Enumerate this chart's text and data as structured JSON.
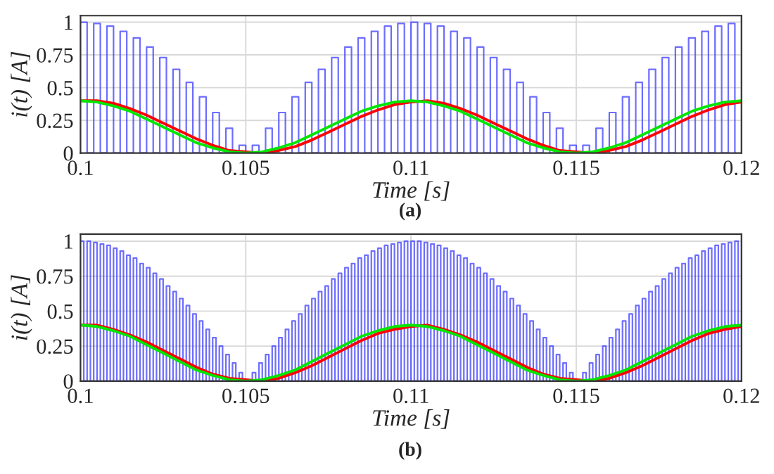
{
  "chart_data": [
    {
      "type": "line",
      "xlabel": "Time [s]",
      "ylabel": "i(t) [A]",
      "xlim": [
        0.1,
        0.12
      ],
      "ylim": [
        0,
        1.05
      ],
      "xticks": [
        0.1,
        0.105,
        0.11,
        0.115,
        0.12
      ],
      "yticks": [
        0,
        0.25,
        0.5,
        0.75,
        1
      ],
      "grid": true,
      "annotations": [
        "(a)"
      ],
      "series": [
        {
          "type": "step",
          "color": "#3c3cff",
          "x": [
            0.1,
            0.1002,
            0.1004,
            0.1006,
            0.1008,
            0.101,
            0.1012,
            0.1014,
            0.1016,
            0.1018,
            0.102,
            0.1022,
            0.1024,
            0.1026,
            0.1028,
            0.103,
            0.1032,
            0.1034,
            0.1036,
            0.1038,
            0.104,
            0.1042,
            0.1044,
            0.1046,
            0.1048,
            0.105,
            0.1052,
            0.1054,
            0.1056,
            0.1058,
            0.106,
            0.1062,
            0.1064,
            0.1066,
            0.1068,
            0.107,
            0.1072,
            0.1074,
            0.1076,
            0.1078,
            0.108,
            0.1082,
            0.1084,
            0.1086,
            0.1088,
            0.109,
            0.1092,
            0.1094,
            0.1096,
            0.1098,
            0.11,
            0.1102,
            0.1104,
            0.1106,
            0.1108,
            0.111,
            0.1112,
            0.1114,
            0.1116,
            0.1118,
            0.112,
            0.1122,
            0.1124,
            0.1126,
            0.1128,
            0.113,
            0.1132,
            0.1134,
            0.1136,
            0.1138,
            0.114,
            0.1142,
            0.1144,
            0.1146,
            0.1148,
            0.115,
            0.1152,
            0.1154,
            0.1156,
            0.1158,
            0.116,
            0.1162,
            0.1164,
            0.1166,
            0.1168,
            0.117,
            0.1172,
            0.1174,
            0.1176,
            0.1178,
            0.118,
            0.1182,
            0.1184,
            0.1186,
            0.1188,
            0.119,
            0.1192,
            0.1194,
            0.1196,
            0.1198
          ],
          "values": [
            1.0,
            0,
            0.99,
            0,
            0.97,
            0,
            0.93,
            0,
            0.88,
            0,
            0.81,
            0,
            0.73,
            0,
            0.64,
            0,
            0.54,
            0,
            0.43,
            0,
            0.31,
            0,
            0.19,
            0,
            0.06,
            0,
            0.06,
            0,
            0.19,
            0,
            0.31,
            0,
            0.43,
            0,
            0.54,
            0,
            0.64,
            0,
            0.73,
            0,
            0.81,
            0,
            0.88,
            0,
            0.93,
            0,
            0.97,
            0,
            0.99,
            0,
            1.0,
            0,
            0.99,
            0,
            0.97,
            0,
            0.93,
            0,
            0.88,
            0,
            0.81,
            0,
            0.73,
            0,
            0.64,
            0,
            0.54,
            0,
            0.43,
            0,
            0.31,
            0,
            0.19,
            0,
            0.06,
            0,
            0.06,
            0,
            0.19,
            0,
            0.31,
            0,
            0.43,
            0,
            0.54,
            0,
            0.64,
            0,
            0.73,
            0,
            0.81,
            0,
            0.88,
            0,
            0.93,
            0,
            0.97,
            0,
            0.99,
            0
          ]
        },
        {
          "color": "#ff0000",
          "x": [
            0.1,
            0.1005,
            0.101,
            0.1015,
            0.102,
            0.1025,
            0.103,
            0.1035,
            0.104,
            0.1045,
            0.105,
            0.1055,
            0.106,
            0.1065,
            0.107,
            0.1075,
            0.108,
            0.1085,
            0.109,
            0.1095,
            0.11,
            0.1105,
            0.111,
            0.1115,
            0.112,
            0.1125,
            0.113,
            0.1135,
            0.114,
            0.1145,
            0.115,
            0.1155,
            0.116,
            0.1165,
            0.117,
            0.1175,
            0.118,
            0.1185,
            0.119,
            0.1195,
            0.12
          ],
          "values": [
            0.4,
            0.4,
            0.38,
            0.34,
            0.29,
            0.23,
            0.17,
            0.11,
            0.06,
            0.02,
            0.01,
            0.0,
            0.02,
            0.05,
            0.1,
            0.16,
            0.22,
            0.28,
            0.33,
            0.37,
            0.39,
            0.4,
            0.38,
            0.34,
            0.29,
            0.23,
            0.17,
            0.11,
            0.06,
            0.02,
            0.01,
            0.0,
            0.02,
            0.05,
            0.1,
            0.16,
            0.22,
            0.28,
            0.33,
            0.37,
            0.39
          ]
        },
        {
          "color": "#00e600",
          "x": [
            0.1,
            0.1005,
            0.101,
            0.1015,
            0.102,
            0.1025,
            0.103,
            0.1035,
            0.104,
            0.1045,
            0.105,
            0.1055,
            0.106,
            0.1065,
            0.107,
            0.1075,
            0.108,
            0.1085,
            0.109,
            0.1095,
            0.11,
            0.1105,
            0.111,
            0.1115,
            0.112,
            0.1125,
            0.113,
            0.1135,
            0.114,
            0.1145,
            0.115,
            0.1155,
            0.116,
            0.1165,
            0.117,
            0.1175,
            0.118,
            0.1185,
            0.119,
            0.1195,
            0.12
          ],
          "values": [
            0.4,
            0.39,
            0.36,
            0.32,
            0.26,
            0.2,
            0.14,
            0.08,
            0.04,
            0.01,
            0.0,
            0.01,
            0.04,
            0.08,
            0.14,
            0.2,
            0.26,
            0.32,
            0.36,
            0.39,
            0.4,
            0.39,
            0.36,
            0.32,
            0.26,
            0.2,
            0.14,
            0.08,
            0.04,
            0.01,
            0.0,
            0.01,
            0.04,
            0.08,
            0.14,
            0.2,
            0.26,
            0.32,
            0.36,
            0.39,
            0.4
          ]
        }
      ]
    },
    {
      "type": "line",
      "xlabel": "Time [s]",
      "ylabel": "i(t) [A]",
      "xlim": [
        0.1,
        0.12
      ],
      "ylim": [
        0,
        1.05
      ],
      "xticks": [
        0.1,
        0.105,
        0.11,
        0.115,
        0.12
      ],
      "yticks": [
        0,
        0.25,
        0.5,
        0.75,
        1
      ],
      "grid": true,
      "annotations": [
        "(b)"
      ],
      "series": [
        {
          "type": "step",
          "color": "#3c3cff",
          "x": [
            0.1,
            0.1001,
            0.1002,
            0.1003,
            0.1004,
            0.1005,
            0.1006,
            0.1007,
            0.1008,
            0.1009,
            0.101,
            0.1011,
            0.1012,
            0.1013,
            0.1014,
            0.1015,
            0.1016,
            0.1017,
            0.1018,
            0.1019,
            0.102,
            0.1021,
            0.1022,
            0.1023,
            0.1024,
            0.1025,
            0.1026,
            0.1027,
            0.1028,
            0.1029,
            0.103,
            0.1031,
            0.1032,
            0.1033,
            0.1034,
            0.1035,
            0.1036,
            0.1037,
            0.1038,
            0.1039,
            0.104,
            0.1041,
            0.1042,
            0.1043,
            0.1044,
            0.1045,
            0.1046,
            0.1047,
            0.1048,
            0.1049,
            0.105,
            0.1051,
            0.1052,
            0.1053,
            0.1054,
            0.1055,
            0.1056,
            0.1057,
            0.1058,
            0.1059,
            0.106,
            0.1061,
            0.1062,
            0.1063,
            0.1064,
            0.1065,
            0.1066,
            0.1067,
            0.1068,
            0.1069,
            0.107,
            0.1071,
            0.1072,
            0.1073,
            0.1074,
            0.1075,
            0.1076,
            0.1077,
            0.1078,
            0.1079,
            0.108,
            0.1081,
            0.1082,
            0.1083,
            0.1084,
            0.1085,
            0.1086,
            0.1087,
            0.1088,
            0.1089,
            0.109,
            0.1091,
            0.1092,
            0.1093,
            0.1094,
            0.1095,
            0.1096,
            0.1097,
            0.1098,
            0.1099,
            0.11,
            0.1101,
            0.1102,
            0.1103,
            0.1104,
            0.1105,
            0.1106,
            0.1107,
            0.1108,
            0.1109,
            0.111,
            0.1111,
            0.1112,
            0.1113,
            0.1114,
            0.1115,
            0.1116,
            0.1117,
            0.1118,
            0.1119,
            0.112,
            0.1121,
            0.1122,
            0.1123,
            0.1124,
            0.1125,
            0.1126,
            0.1127,
            0.1128,
            0.1129,
            0.113,
            0.1131,
            0.1132,
            0.1133,
            0.1134,
            0.1135,
            0.1136,
            0.1137,
            0.1138,
            0.1139,
            0.114,
            0.1141,
            0.1142,
            0.1143,
            0.1144,
            0.1145,
            0.1146,
            0.1147,
            0.1148,
            0.1149,
            0.115,
            0.1151,
            0.1152,
            0.1153,
            0.1154,
            0.1155,
            0.1156,
            0.1157,
            0.1158,
            0.1159,
            0.116,
            0.1161,
            0.1162,
            0.1163,
            0.1164,
            0.1165,
            0.1166,
            0.1167,
            0.1168,
            0.1169,
            0.117,
            0.1171,
            0.1172,
            0.1173,
            0.1174,
            0.1175,
            0.1176,
            0.1177,
            0.1178,
            0.1179,
            0.118,
            0.1181,
            0.1182,
            0.1183,
            0.1184,
            0.1185,
            0.1186,
            0.1187,
            0.1188,
            0.1189,
            0.119,
            0.1191,
            0.1192,
            0.1193,
            0.1194,
            0.1195,
            0.1196,
            0.1197,
            0.1198,
            0.1199
          ],
          "values": [
            1.0,
            0,
            1.0,
            0,
            0.99,
            0,
            0.98,
            0,
            0.97,
            0,
            0.95,
            0,
            0.93,
            0,
            0.9,
            0,
            0.88,
            0,
            0.84,
            0,
            0.81,
            0,
            0.77,
            0,
            0.73,
            0,
            0.68,
            0,
            0.64,
            0,
            0.59,
            0,
            0.54,
            0,
            0.48,
            0,
            0.43,
            0,
            0.37,
            0,
            0.31,
            0,
            0.25,
            0,
            0.19,
            0,
            0.13,
            0,
            0.06,
            0,
            0.0,
            0,
            0.06,
            0,
            0.13,
            0,
            0.19,
            0,
            0.25,
            0,
            0.31,
            0,
            0.37,
            0,
            0.43,
            0,
            0.48,
            0,
            0.54,
            0,
            0.59,
            0,
            0.64,
            0,
            0.68,
            0,
            0.73,
            0,
            0.77,
            0,
            0.81,
            0,
            0.84,
            0,
            0.88,
            0,
            0.9,
            0,
            0.93,
            0,
            0.95,
            0,
            0.97,
            0,
            0.98,
            0,
            0.99,
            0,
            1.0,
            0,
            1.0,
            0,
            1.0,
            0,
            0.99,
            0,
            0.98,
            0,
            0.97,
            0,
            0.95,
            0,
            0.93,
            0,
            0.9,
            0,
            0.88,
            0,
            0.84,
            0,
            0.81,
            0,
            0.77,
            0,
            0.73,
            0,
            0.68,
            0,
            0.64,
            0,
            0.59,
            0,
            0.54,
            0,
            0.48,
            0,
            0.43,
            0,
            0.37,
            0,
            0.31,
            0,
            0.25,
            0,
            0.19,
            0,
            0.13,
            0,
            0.06,
            0,
            0.0,
            0,
            0.06,
            0,
            0.13,
            0,
            0.19,
            0,
            0.25,
            0,
            0.31,
            0,
            0.37,
            0,
            0.43,
            0,
            0.48,
            0,
            0.54,
            0,
            0.59,
            0,
            0.64,
            0,
            0.68,
            0,
            0.73,
            0,
            0.77,
            0,
            0.81,
            0,
            0.84,
            0,
            0.88,
            0,
            0.9,
            0,
            0.93,
            0,
            0.95,
            0,
            0.97,
            0,
            0.98,
            0,
            0.99,
            0,
            1.0,
            0
          ]
        },
        {
          "color": "#ff0000",
          "x": [
            0.1,
            0.1005,
            0.101,
            0.1015,
            0.102,
            0.1025,
            0.103,
            0.1035,
            0.104,
            0.1045,
            0.105,
            0.1055,
            0.106,
            0.1065,
            0.107,
            0.1075,
            0.108,
            0.1085,
            0.109,
            0.1095,
            0.11,
            0.1105,
            0.111,
            0.1115,
            0.112,
            0.1125,
            0.113,
            0.1135,
            0.114,
            0.1145,
            0.115,
            0.1155,
            0.116,
            0.1165,
            0.117,
            0.1175,
            0.118,
            0.1185,
            0.119,
            0.1195,
            0.12
          ],
          "values": [
            0.4,
            0.4,
            0.37,
            0.33,
            0.28,
            0.22,
            0.16,
            0.1,
            0.05,
            0.02,
            0.01,
            0.0,
            0.02,
            0.06,
            0.11,
            0.17,
            0.23,
            0.29,
            0.34,
            0.37,
            0.39,
            0.4,
            0.37,
            0.33,
            0.28,
            0.22,
            0.16,
            0.1,
            0.05,
            0.02,
            0.01,
            0.0,
            0.02,
            0.06,
            0.11,
            0.17,
            0.23,
            0.29,
            0.34,
            0.37,
            0.39
          ]
        },
        {
          "color": "#00e600",
          "x": [
            0.1,
            0.1005,
            0.101,
            0.1015,
            0.102,
            0.1025,
            0.103,
            0.1035,
            0.104,
            0.1045,
            0.105,
            0.1055,
            0.106,
            0.1065,
            0.107,
            0.1075,
            0.108,
            0.1085,
            0.109,
            0.1095,
            0.11,
            0.1105,
            0.111,
            0.1115,
            0.112,
            0.1125,
            0.113,
            0.1135,
            0.114,
            0.1145,
            0.115,
            0.1155,
            0.116,
            0.1165,
            0.117,
            0.1175,
            0.118,
            0.1185,
            0.119,
            0.1195,
            0.12
          ],
          "values": [
            0.4,
            0.39,
            0.36,
            0.32,
            0.26,
            0.2,
            0.14,
            0.08,
            0.04,
            0.01,
            0.0,
            0.01,
            0.04,
            0.08,
            0.14,
            0.2,
            0.26,
            0.32,
            0.36,
            0.39,
            0.4,
            0.39,
            0.36,
            0.32,
            0.26,
            0.2,
            0.14,
            0.08,
            0.04,
            0.01,
            0.0,
            0.01,
            0.04,
            0.08,
            0.14,
            0.2,
            0.26,
            0.32,
            0.36,
            0.39,
            0.4
          ]
        }
      ]
    }
  ]
}
